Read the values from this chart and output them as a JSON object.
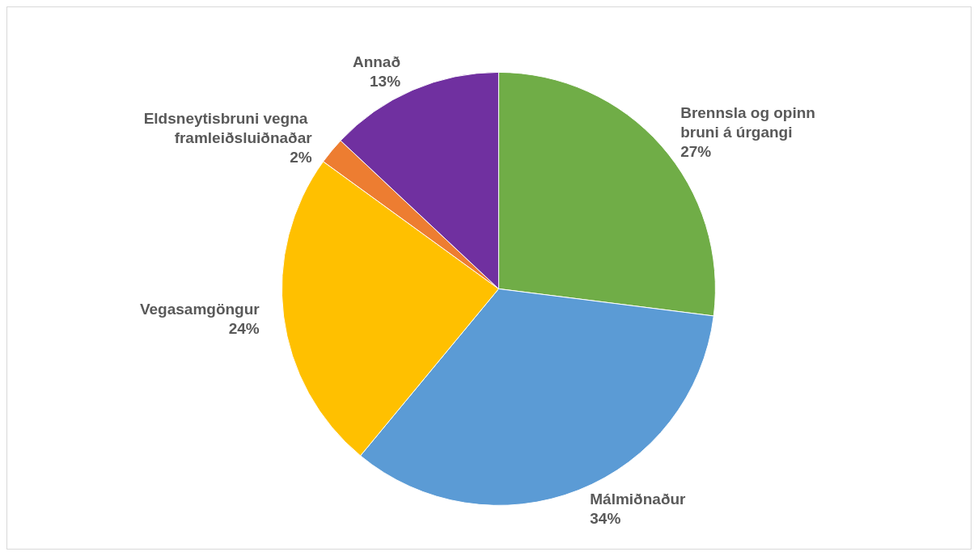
{
  "chart_data": {
    "type": "pie",
    "categories": [
      "Brennsla og opinn bruni á úrgangi",
      "Málmiðnaður",
      "Vegasamgöngur",
      "Eldsneytisbruni vegna framleiðsluiðnaðar",
      "Annað"
    ],
    "values": [
      27,
      34,
      24,
      2,
      13
    ],
    "value_labels": [
      "27%",
      "34%",
      "24%",
      "2%",
      "13%"
    ],
    "colors": [
      "#70ad47",
      "#5b9bd5",
      "#ffc000",
      "#ed7d31",
      "#7030a0"
    ]
  }
}
